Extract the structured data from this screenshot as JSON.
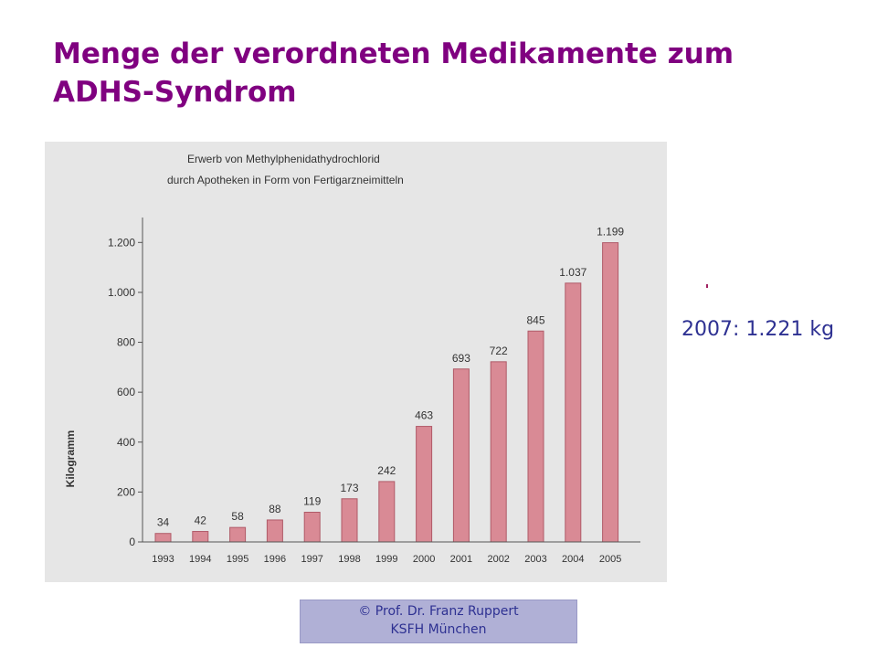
{
  "slide": {
    "title": "Menge der verordneten Medikamente zum ADHS-Syndrom",
    "side_note": "2007: 1.221 kg",
    "credit_line1": "© Prof. Dr. Franz Ruppert",
    "credit_line2": "KSFH München"
  },
  "colors": {
    "title": "#800080",
    "note": "#2e3192",
    "bar_fill": "#d98a95",
    "bar_stroke": "#b05a68",
    "panel_bg": "#e6e6e6",
    "credit_bg": "#b0b0d6"
  },
  "chart_data": {
    "type": "bar",
    "title": "Erwerb von Methylphenidathydrochlorid",
    "subtitle": "durch Apotheken in Form von Fertigarzneimitteln",
    "xlabel": "",
    "ylabel": "Kilogramm",
    "categories": [
      "1993",
      "1994",
      "1995",
      "1996",
      "1997",
      "1998",
      "1999",
      "2000",
      "2001",
      "2002",
      "2003",
      "2004",
      "2005"
    ],
    "values": [
      34,
      42,
      58,
      88,
      119,
      173,
      242,
      463,
      693,
      722,
      845,
      1037,
      1199
    ],
    "value_labels": [
      "34",
      "42",
      "58",
      "88",
      "119",
      "173",
      "242",
      "463",
      "693",
      "722",
      "845",
      "1.037",
      "1.199"
    ],
    "ylim": [
      0,
      1300
    ],
    "yticks": [
      0,
      200,
      400,
      600,
      800,
      1000,
      1200
    ],
    "ytick_labels": [
      "0",
      "200",
      "400",
      "600",
      "800",
      "1.000",
      "1.200"
    ],
    "grid": false,
    "legend": "none"
  }
}
